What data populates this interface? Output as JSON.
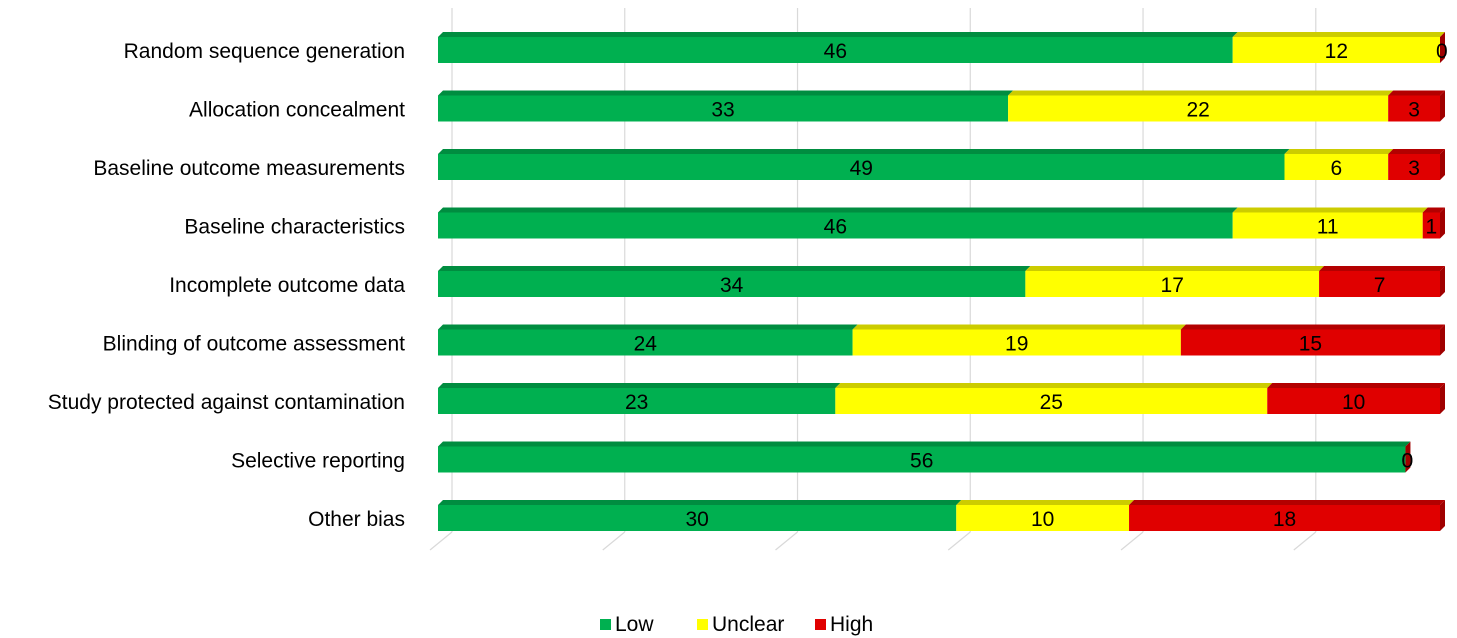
{
  "chart_data": {
    "type": "bar",
    "stacked": true,
    "orientation": "horizontal",
    "style": "3d",
    "categories": [
      "Random sequence generation",
      "Allocation concealment",
      "Baseline outcome measurements",
      "Baseline characteristics",
      "Incomplete outcome data",
      "Blinding of outcome assessment",
      "Study protected against contamination",
      "Selective reporting",
      "Other bias"
    ],
    "series": [
      {
        "name": "Low",
        "color": "#00b050",
        "values": [
          46,
          33,
          49,
          46,
          34,
          24,
          23,
          56,
          30
        ]
      },
      {
        "name": "Unclear",
        "color": "#ffff00",
        "values": [
          12,
          22,
          6,
          11,
          17,
          19,
          25,
          0,
          10
        ]
      },
      {
        "name": "High",
        "color": "#e00000",
        "values": [
          0,
          3,
          3,
          1,
          7,
          15,
          10,
          0,
          18
        ]
      }
    ],
    "xlim": [
      0,
      58
    ],
    "grid": true,
    "legend": "bottom"
  }
}
